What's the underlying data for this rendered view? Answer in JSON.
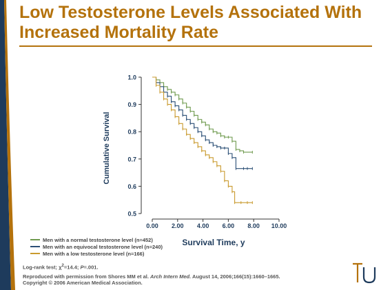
{
  "slide": {
    "title_line1": "Low Testosterone Levels Associated With",
    "title_line2": "Increased Mortality Rate",
    "footnote_stats_prefix": "Log-rank test; χ",
    "footnote_stats_sup": "2",
    "footnote_stats_mid": "=14.4; ",
    "footnote_stats_p": "P",
    "footnote_stats_end": "=.001.",
    "citation_prefix": "Reproduced with permission from Shores MM et al. ",
    "citation_journal": "Arch Intern Med.",
    "citation_rest": " August 14, 2006;166(15):1660–1665.",
    "copyright": "Copyright © 2006 American Medical Association.",
    "accent_color": "#b4720c"
  },
  "chart_data": {
    "type": "line",
    "step": true,
    "title": "",
    "xlabel": "Survival Time, y",
    "ylabel": "Cumulative Survival",
    "xlim": [
      0,
      10
    ],
    "ylim": [
      0.5,
      1.0
    ],
    "xticks": [
      0,
      2,
      4,
      6,
      8,
      10
    ],
    "xtick_labels": [
      "0.00",
      "2.00",
      "4.00",
      "6.00",
      "8.00",
      "10.00"
    ],
    "yticks": [
      0.5,
      0.6,
      0.7,
      0.8,
      0.9,
      1.0
    ],
    "ytick_labels": [
      "0.5",
      "0.6",
      "0.7",
      "0.8",
      "0.9",
      "1.0"
    ],
    "grid": false,
    "legend_position": "bottom-left",
    "series": [
      {
        "name": "Men with a normal testosterone level (n=452)",
        "color": "#6f9a4e",
        "points": [
          [
            0,
            1.0
          ],
          [
            0.3,
            0.99
          ],
          [
            0.6,
            0.98
          ],
          [
            0.9,
            0.965
          ],
          [
            1.2,
            0.955
          ],
          [
            1.5,
            0.945
          ],
          [
            1.8,
            0.935
          ],
          [
            2.1,
            0.92
          ],
          [
            2.4,
            0.905
          ],
          [
            2.7,
            0.89
          ],
          [
            3.0,
            0.875
          ],
          [
            3.3,
            0.86
          ],
          [
            3.6,
            0.845
          ],
          [
            3.9,
            0.835
          ],
          [
            4.2,
            0.825
          ],
          [
            4.5,
            0.81
          ],
          [
            4.8,
            0.8
          ],
          [
            5.1,
            0.795
          ],
          [
            5.4,
            0.785
          ],
          [
            5.7,
            0.78
          ],
          [
            6.0,
            0.78
          ],
          [
            6.3,
            0.765
          ],
          [
            6.6,
            0.735
          ],
          [
            6.9,
            0.73
          ],
          [
            7.2,
            0.725
          ],
          [
            7.9,
            0.725
          ]
        ]
      },
      {
        "name": "Men with an equivocal testosterone level (n=240)",
        "color": "#2b4f76",
        "points": [
          [
            0,
            1.0
          ],
          [
            0.3,
            0.98
          ],
          [
            0.6,
            0.965
          ],
          [
            0.9,
            0.945
          ],
          [
            1.2,
            0.93
          ],
          [
            1.5,
            0.91
          ],
          [
            1.8,
            0.895
          ],
          [
            2.1,
            0.88
          ],
          [
            2.4,
            0.86
          ],
          [
            2.7,
            0.845
          ],
          [
            3.0,
            0.83
          ],
          [
            3.3,
            0.815
          ],
          [
            3.6,
            0.8
          ],
          [
            3.9,
            0.785
          ],
          [
            4.2,
            0.77
          ],
          [
            4.5,
            0.76
          ],
          [
            4.8,
            0.75
          ],
          [
            5.1,
            0.745
          ],
          [
            5.4,
            0.74
          ],
          [
            5.7,
            0.74
          ],
          [
            6.0,
            0.72
          ],
          [
            6.3,
            0.705
          ],
          [
            6.6,
            0.665
          ],
          [
            7.2,
            0.665
          ],
          [
            7.5,
            0.665
          ],
          [
            7.9,
            0.665
          ]
        ]
      },
      {
        "name": "Men with a low testosterone level (n=166)",
        "color": "#c99a2e",
        "points": [
          [
            0,
            1.0
          ],
          [
            0.3,
            0.97
          ],
          [
            0.6,
            0.945
          ],
          [
            0.9,
            0.92
          ],
          [
            1.2,
            0.9
          ],
          [
            1.5,
            0.88
          ],
          [
            1.8,
            0.855
          ],
          [
            2.1,
            0.83
          ],
          [
            2.4,
            0.81
          ],
          [
            2.7,
            0.79
          ],
          [
            3.0,
            0.775
          ],
          [
            3.3,
            0.76
          ],
          [
            3.6,
            0.745
          ],
          [
            3.9,
            0.73
          ],
          [
            4.2,
            0.715
          ],
          [
            4.5,
            0.705
          ],
          [
            4.8,
            0.69
          ],
          [
            5.1,
            0.675
          ],
          [
            5.4,
            0.655
          ],
          [
            5.7,
            0.62
          ],
          [
            6.0,
            0.6
          ],
          [
            6.3,
            0.58
          ],
          [
            6.5,
            0.54
          ],
          [
            7.0,
            0.54
          ],
          [
            7.5,
            0.54
          ],
          [
            7.9,
            0.54
          ]
        ]
      }
    ]
  }
}
